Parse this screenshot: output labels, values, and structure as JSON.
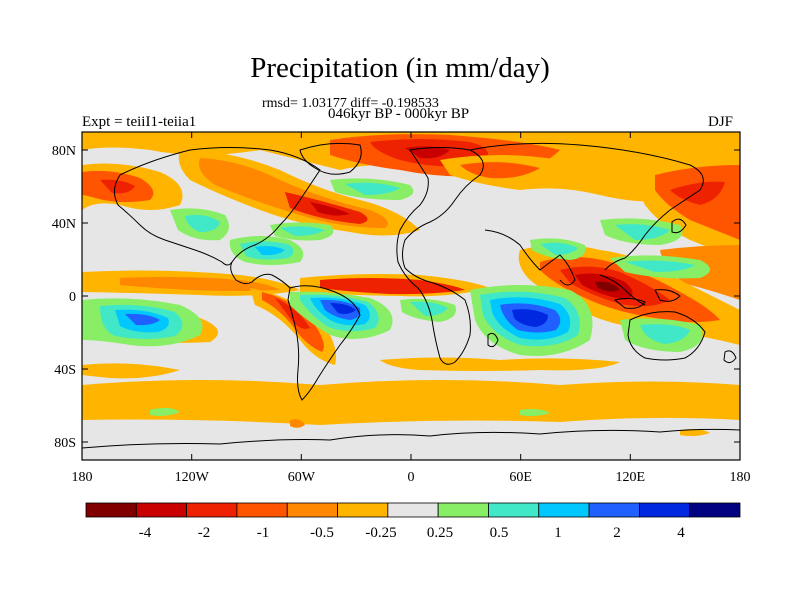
{
  "title": "Precipitation (in mm/day)",
  "stats": "rmsd= 1.03177  diff= -0.198533",
  "period": "046kyr BP - 000kyr BP",
  "experiment": "Expt = teiiI1-teiia1",
  "season": "DJF",
  "lat_ticks": [
    "80N",
    "40N",
    "0",
    "40S",
    "80S"
  ],
  "lon_ticks": [
    "180",
    "120W",
    "60W",
    "0",
    "60E",
    "120E",
    "180"
  ],
  "colorbar": {
    "colors": [
      "#800000",
      "#c80000",
      "#ee2200",
      "#ff5500",
      "#ff8800",
      "#ffb400",
      "#e6e6e6",
      "#88ee66",
      "#40e8c8",
      "#00c8ff",
      "#2060ff",
      "#0028e0",
      "#000080"
    ],
    "labels": [
      "-4",
      "-2",
      "-1",
      "-0.5",
      "-0.25",
      "0.25",
      "0.5",
      "1",
      "2",
      "4"
    ]
  }
}
